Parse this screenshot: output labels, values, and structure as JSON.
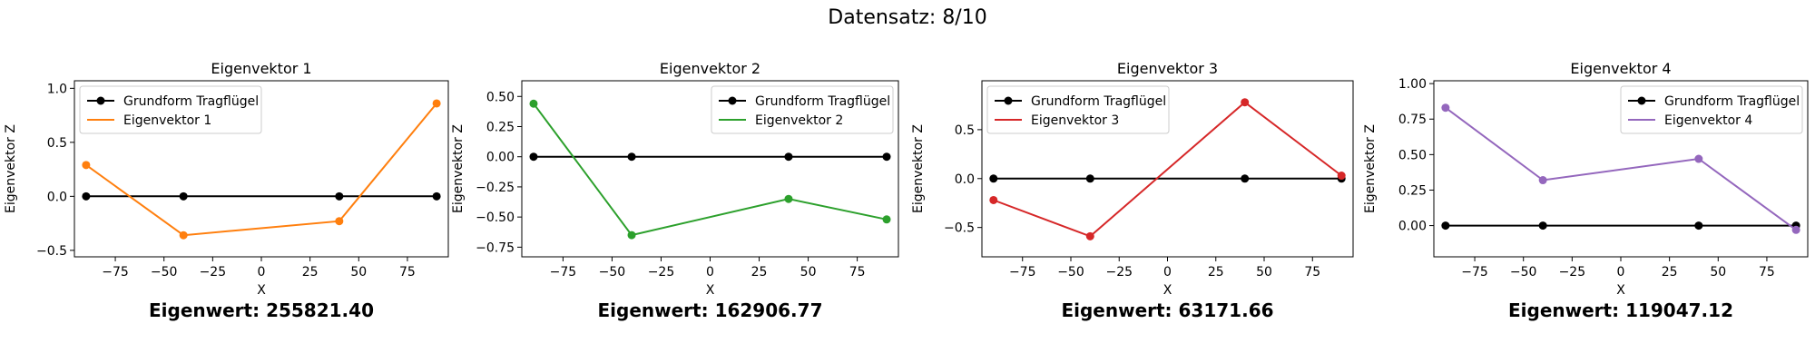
{
  "figure": {
    "suptitle": "Datensatz: 8/10"
  },
  "chart_data": [
    {
      "type": "line",
      "title": "Eigenvektor 1",
      "xlabel": "X",
      "ylabel": "Eigenvektor Z",
      "xlim": [
        -96,
        96
      ],
      "ylim": [
        -0.56,
        1.07
      ],
      "xticks": [
        -75,
        -50,
        -25,
        0,
        25,
        50,
        75
      ],
      "yticks": [
        -0.5,
        0.0,
        0.5,
        1.0
      ],
      "ytick_labels": [
        "−0.5",
        "0.0",
        "0.5",
        "1.0"
      ],
      "legend_position": "upper left",
      "series": [
        {
          "name": "Grundform Tragflügel",
          "color": "#000000",
          "x": [
            -90,
            -40,
            40,
            90
          ],
          "y": [
            0,
            0,
            0,
            0
          ]
        },
        {
          "name": "Eigenvektor 1",
          "color": "#ff7f0e",
          "x": [
            -90,
            -40,
            40,
            90
          ],
          "y": [
            0.29,
            -0.36,
            -0.23,
            0.86
          ]
        }
      ],
      "eigenvalue_text": "Eigenwert: 255821.40"
    },
    {
      "type": "line",
      "title": "Eigenvektor 2",
      "xlabel": "X",
      "ylabel": "Eigenvektor Z",
      "xlim": [
        -96,
        96
      ],
      "ylim": [
        -0.83,
        0.63
      ],
      "xticks": [
        -75,
        -50,
        -25,
        0,
        25,
        50,
        75
      ],
      "yticks": [
        -0.75,
        -0.5,
        -0.25,
        0.0,
        0.25,
        0.5
      ],
      "ytick_labels": [
        "−0.75",
        "−0.50",
        "−0.25",
        "0.00",
        "0.25",
        "0.50"
      ],
      "legend_position": "upper right",
      "series": [
        {
          "name": "Grundform Tragflügel",
          "color": "#000000",
          "x": [
            -90,
            -40,
            40,
            90
          ],
          "y": [
            0,
            0,
            0,
            0
          ]
        },
        {
          "name": "Eigenvektor 2",
          "color": "#2ca02c",
          "x": [
            -90,
            -40,
            40,
            90
          ],
          "y": [
            0.44,
            -0.65,
            -0.35,
            -0.52
          ]
        }
      ],
      "eigenvalue_text": "Eigenwert: 162906.77"
    },
    {
      "type": "line",
      "title": "Eigenvektor 3",
      "xlabel": "X",
      "ylabel": "Eigenvektor Z",
      "xlim": [
        -96,
        96
      ],
      "ylim": [
        -0.8,
        1.0
      ],
      "xticks": [
        -75,
        -50,
        -25,
        0,
        25,
        50,
        75
      ],
      "yticks": [
        -0.5,
        0.0,
        0.5
      ],
      "ytick_labels": [
        "−0.5",
        "0.0",
        "0.5"
      ],
      "legend_position": "upper left",
      "series": [
        {
          "name": "Grundform Tragflügel",
          "color": "#000000",
          "x": [
            -90,
            -40,
            40,
            90
          ],
          "y": [
            0,
            0,
            0,
            0
          ]
        },
        {
          "name": "Eigenvektor 3",
          "color": "#d62728",
          "x": [
            -90,
            -40,
            40,
            90
          ],
          "y": [
            -0.22,
            -0.59,
            0.78,
            0.03
          ]
        }
      ],
      "eigenvalue_text": "Eigenwert: 63171.66"
    },
    {
      "type": "line",
      "title": "Eigenvektor 4",
      "xlabel": "X",
      "ylabel": "Eigenvektor Z",
      "xlim": [
        -96,
        96
      ],
      "ylim": [
        -0.22,
        1.02
      ],
      "xticks": [
        -75,
        -50,
        -25,
        0,
        25,
        50,
        75
      ],
      "yticks": [
        0.0,
        0.25,
        0.5,
        0.75,
        1.0
      ],
      "ytick_labels": [
        "0.00",
        "0.25",
        "0.50",
        "0.75",
        "1.00"
      ],
      "legend_position": "upper right",
      "series": [
        {
          "name": "Grundform Tragflügel",
          "color": "#000000",
          "x": [
            -90,
            -40,
            40,
            90
          ],
          "y": [
            0,
            0,
            0,
            0
          ]
        },
        {
          "name": "Eigenvektor 4",
          "color": "#9467bd",
          "x": [
            -90,
            -40,
            40,
            90
          ],
          "y": [
            0.83,
            0.32,
            0.47,
            -0.03
          ]
        }
      ],
      "eigenvalue_text": "Eigenwert: 119047.12"
    }
  ]
}
